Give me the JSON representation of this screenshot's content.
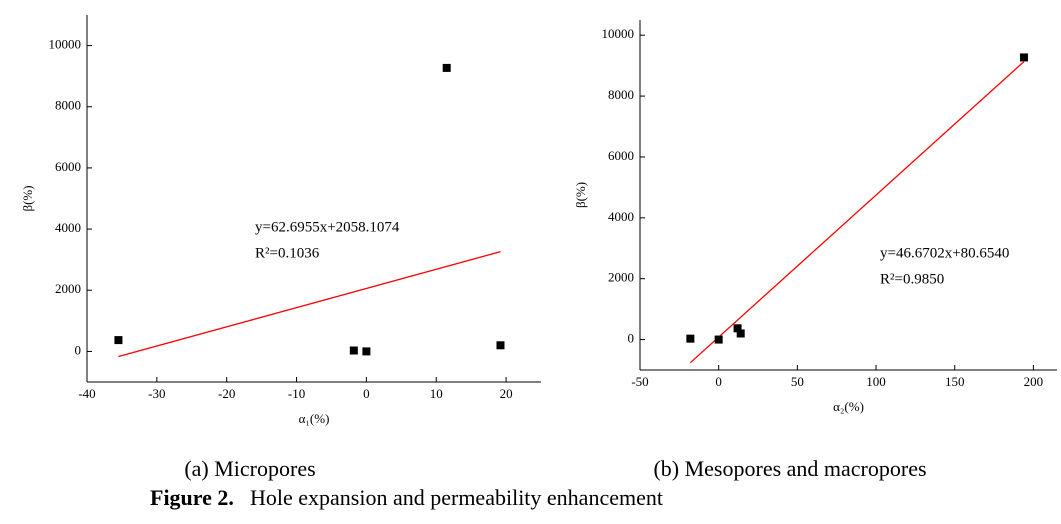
{
  "chart_data": [
    {
      "type": "scatter",
      "xlabel": "α₁(%)",
      "ylabel": "β(%)",
      "x": [
        -35.5,
        -1.8,
        0,
        11.5,
        19.2
      ],
      "series": [
        {
          "color": "#000000",
          "values": [
            370,
            30,
            0,
            9270,
            200
          ]
        }
      ],
      "xlim": [
        -40,
        25
      ],
      "xticks": [
        -40,
        -30,
        -20,
        -10,
        0,
        10,
        20
      ],
      "ylim": [
        -1000,
        11000
      ],
      "yticks": [
        0,
        2000,
        4000,
        6000,
        8000,
        10000
      ],
      "fit": {
        "slope": 62.6955,
        "intercept": 2058.1074,
        "x": [
          -35.5,
          19.2
        ],
        "color": "#ff0000",
        "equation": "y=62.6955x+2058.1074",
        "r2_label": "R²=0.1036"
      },
      "caption": "(a) Micropores"
    },
    {
      "type": "scatter",
      "xlabel": "α₂(%)",
      "ylabel": "β(%)",
      "x": [
        -18,
        0,
        12,
        14,
        194
      ],
      "series": [
        {
          "color": "#000000",
          "values": [
            30,
            0,
            370,
            200,
            9270
          ]
        }
      ],
      "xlim": [
        -50,
        215
      ],
      "xticks": [
        -50,
        0,
        50,
        100,
        150,
        200
      ],
      "ylim": [
        -1000,
        10500
      ],
      "yticks": [
        0,
        2000,
        4000,
        6000,
        8000,
        10000
      ],
      "fit": {
        "slope": 46.6702,
        "intercept": 80.654,
        "x": [
          -18,
          194
        ],
        "color": "#ff0000",
        "equation": "y=46.6702x+80.6540",
        "r2_label": "R²=0.9850"
      },
      "caption": "(b) Mesopores and macropores"
    }
  ],
  "figure_caption": {
    "label": "Figure 2.",
    "text": "Hole expansion and permeability enhancement"
  }
}
